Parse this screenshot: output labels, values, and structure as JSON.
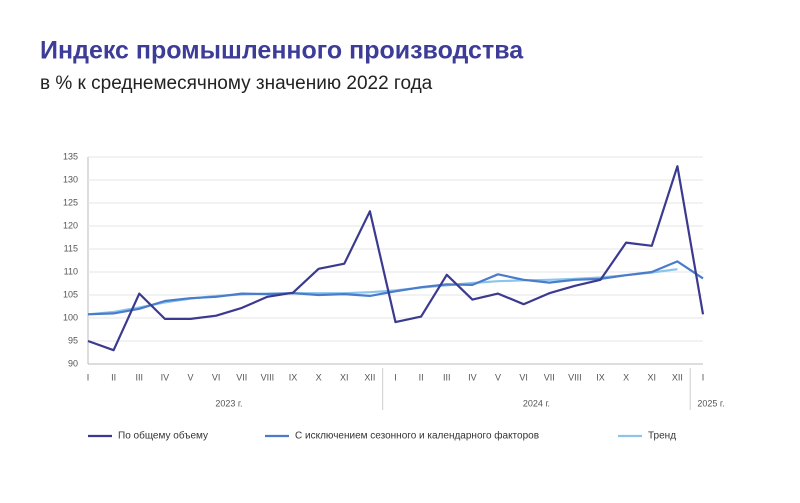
{
  "chart_data": {
    "type": "line",
    "title": "Индекс промышленного производства",
    "subtitle": "в % к среднемесячному значению 2022 года",
    "categories": [
      "I",
      "II",
      "III",
      "IV",
      "V",
      "VI",
      "VII",
      "VIII",
      "IX",
      "X",
      "XI",
      "XII",
      "I",
      "II",
      "III",
      "IV",
      "V",
      "VI",
      "VII",
      "VIII",
      "IX",
      "X",
      "XI",
      "XII",
      "I"
    ],
    "x_groups": [
      {
        "label": "2023 г.",
        "count": 12
      },
      {
        "label": "2024 г.",
        "count": 12
      },
      {
        "label": "2025 г.",
        "count": 1
      }
    ],
    "series": [
      {
        "name": "По общему объему",
        "color": "#3b3a8f",
        "values": [
          95,
          93,
          105.3,
          99.8,
          99.8,
          100.5,
          102.2,
          104.6,
          105.5,
          110.7,
          111.8,
          123.2,
          99.1,
          100.3,
          109.4,
          104.0,
          105.3,
          103.0,
          105.4,
          107.0,
          108.3,
          116.4,
          115.7,
          133.0,
          100.8
        ]
      },
      {
        "name": "С исключением сезонного и календарного факторов",
        "color": "#4a7cc9",
        "values": [
          100.8,
          101.0,
          102.0,
          103.7,
          104.3,
          104.6,
          105.3,
          105.2,
          105.4,
          105.0,
          105.2,
          104.8,
          105.8,
          106.7,
          107.3,
          107.2,
          109.5,
          108.3,
          107.7,
          108.3,
          108.5,
          109.3,
          110.0,
          112.3,
          108.6
        ]
      },
      {
        "name": "Тренд",
        "color": "#8cc4ec",
        "values": [
          100.8,
          101.3,
          102.3,
          103.4,
          104.2,
          104.8,
          105.1,
          105.3,
          105.4,
          105.4,
          105.4,
          105.6,
          106.0,
          106.6,
          107.1,
          107.6,
          108.0,
          108.2,
          108.3,
          108.5,
          108.8,
          109.3,
          109.9,
          110.6,
          null
        ]
      }
    ],
    "ylim": [
      90,
      135
    ],
    "yticks": [
      90,
      95,
      100,
      105,
      110,
      115,
      120,
      125,
      130,
      135
    ],
    "grid": true
  }
}
